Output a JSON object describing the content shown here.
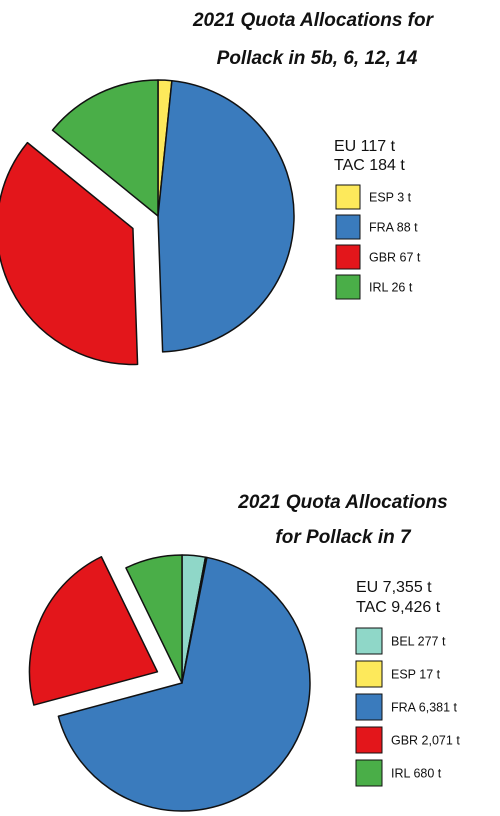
{
  "chart_data": [
    {
      "type": "pie",
      "title_lines": [
        "2021 Quota Allocations for",
        "Pollack in 5b, 6, 12, 14"
      ],
      "summary_lines": [
        "EU 117 t",
        "TAC 184 t"
      ],
      "slices": [
        {
          "label": "ESP 3 t",
          "value": 3,
          "color": "#fde95b"
        },
        {
          "label": "FRA 88 t",
          "value": 88,
          "color": "#3a7bbd"
        },
        {
          "label": "GBR 67 t",
          "value": 67,
          "color": "#e3161b",
          "exploded": true
        },
        {
          "label": "IRL 26 t",
          "value": 26,
          "color": "#4aae48"
        }
      ]
    },
    {
      "type": "pie",
      "title_lines": [
        "2021 Quota Allocations",
        "for Pollack in 7"
      ],
      "summary_lines": [
        "EU 7,355 t",
        "TAC 9,426 t"
      ],
      "slices": [
        {
          "label": "BEL 277 t",
          "value": 277,
          "color": "#8fd7c8"
        },
        {
          "label": "ESP 17 t",
          "value": 17,
          "color": "#fde95b"
        },
        {
          "label": "FRA 6,381 t",
          "value": 6381,
          "color": "#3a7bbd"
        },
        {
          "label": "GBR 2,071 t",
          "value": 2071,
          "color": "#e3161b",
          "exploded": true
        },
        {
          "label": "IRL 680 t",
          "value": 680,
          "color": "#4aae48"
        }
      ]
    }
  ]
}
